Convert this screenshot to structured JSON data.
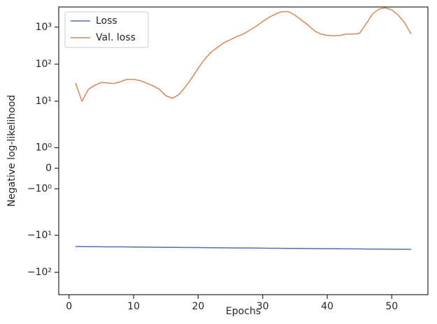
{
  "chart_data": {
    "type": "line",
    "xlabel": "Epochs",
    "ylabel": "Negative log-likelihood",
    "yscale": "symlog",
    "linthresh": 2,
    "linscale": 1,
    "x": [
      1,
      2,
      3,
      4,
      5,
      6,
      7,
      8,
      9,
      10,
      11,
      12,
      13,
      14,
      15,
      16,
      17,
      18,
      19,
      20,
      21,
      22,
      23,
      24,
      25,
      26,
      27,
      28,
      29,
      30,
      31,
      32,
      33,
      34,
      35,
      36,
      37,
      38,
      39,
      40,
      41,
      42,
      43,
      44,
      45,
      46,
      47,
      48,
      49,
      50,
      51,
      52,
      53
    ],
    "series": [
      {
        "name": "Loss",
        "color": "#4c72b0",
        "values": [
          -20.0,
          -20.1,
          -20.2,
          -20.2,
          -20.3,
          -20.4,
          -20.5,
          -20.5,
          -20.6,
          -20.7,
          -20.8,
          -20.8,
          -20.9,
          -21.0,
          -21.1,
          -21.1,
          -21.2,
          -21.3,
          -21.4,
          -21.4,
          -21.5,
          -21.6,
          -21.7,
          -21.7,
          -21.8,
          -21.9,
          -22.0,
          -22.0,
          -22.1,
          -22.2,
          -22.3,
          -22.3,
          -22.4,
          -22.5,
          -22.6,
          -22.6,
          -22.7,
          -22.8,
          -22.9,
          -22.9,
          -23.0,
          -23.1,
          -23.2,
          -23.2,
          -23.3,
          -23.4,
          -23.5,
          -23.5,
          -23.6,
          -23.7,
          -23.8,
          -23.8,
          -23.9
        ]
      },
      {
        "name": "Val. loss",
        "color": "#dd8452",
        "values": [
          31,
          10,
          21,
          27,
          32,
          31,
          30,
          34,
          39,
          39,
          36,
          31,
          26,
          21,
          14,
          12,
          15,
          24,
          42,
          77,
          136,
          210,
          285,
          380,
          460,
          560,
          650,
          830,
          1060,
          1420,
          1840,
          2260,
          2630,
          2630,
          2100,
          1550,
          1150,
          800,
          650,
          600,
          580,
          600,
          650,
          650,
          680,
          1200,
          2260,
          3070,
          3330,
          2900,
          2120,
          1300,
          650
        ]
      }
    ],
    "xlim": [
      -1.6,
      55.6
    ],
    "xticks": [
      0,
      10,
      20,
      30,
      40,
      50
    ],
    "ylim": [
      -400,
      3500
    ],
    "yticks": [
      {
        "value": 1000,
        "label": "10³"
      },
      {
        "value": 100,
        "label": "10²"
      },
      {
        "value": 10,
        "label": "10¹"
      },
      {
        "value": 1,
        "label": "10⁰"
      },
      0,
      {
        "value": -1,
        "label": "−10⁰"
      },
      {
        "value": -10,
        "label": "−10¹"
      },
      {
        "value": -100,
        "label": "−10²"
      }
    ],
    "legend": "upper left"
  }
}
